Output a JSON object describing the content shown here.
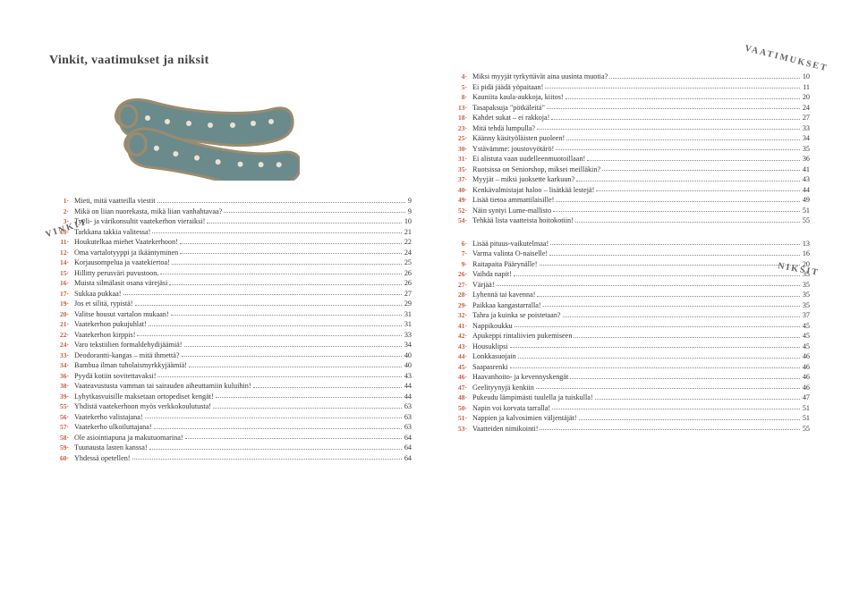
{
  "title": "Vinkit, vaatimukset ja niksit",
  "sideLabels": {
    "vinkit": "VINKIT",
    "vaatimukset": "VAATIMUKSET",
    "niksit": "NIKSIT"
  },
  "colors": {
    "accent": "#c95b3f",
    "sock_fill": "#6b8a8c",
    "sock_outline": "#9b8b6f",
    "sock_dots": "#ebe3d0"
  },
  "left": {
    "vinkit": [
      {
        "n": "1·",
        "label": "Mieti, mitä vaatteilla viestit",
        "p": "9"
      },
      {
        "n": "2·",
        "label": "Mikä on liian nuorekasta, mikä liian vanhahtavaa?",
        "p": "9"
      },
      {
        "n": "3·",
        "label": "Tyyli- ja värikonsultit vaatekerhon vieraiksi!",
        "p": "10"
      },
      {
        "n": "10·",
        "label": "Tarkkana takkia valitessa!",
        "p": "21"
      },
      {
        "n": "11·",
        "label": "Houkutelkaa miehet Vaatekerhoon!",
        "p": "22"
      },
      {
        "n": "12·",
        "label": "Oma vartalotyyppi ja ikääntyminen",
        "p": "24"
      },
      {
        "n": "14·",
        "label": "Korjausompelua ja vaatekiertoa!",
        "p": "25"
      },
      {
        "n": "15·",
        "label": "Hillitty perusväri puvustoon.",
        "p": "26"
      },
      {
        "n": "16·",
        "label": "Muista silmälasit osana värejäsi",
        "p": "26"
      },
      {
        "n": "17·",
        "label": "Sukkaa pukkaa!",
        "p": "27"
      },
      {
        "n": "19·",
        "label": "Jos et silitä, rypistä!",
        "p": "29"
      },
      {
        "n": "20·",
        "label": "Valitse housut vartalon mukaan!",
        "p": "31"
      },
      {
        "n": "21·",
        "label": "Vaatekerhon pukujuhlat!",
        "p": "31"
      },
      {
        "n": "22·",
        "label": "Vaatekerhon kirppis!",
        "p": "33"
      },
      {
        "n": "24·",
        "label": "Varo tekstiilien formaldehydijäämiä!",
        "p": "34"
      },
      {
        "n": "33·",
        "label": "Deodorantti-kangas – mitä ihmettä?",
        "p": "40"
      },
      {
        "n": "34·",
        "label": "Bambua ilman tuholaismyrkkyjäämiä!",
        "p": "40"
      },
      {
        "n": "36·",
        "label": "Pyydä kotiin sovitettavaksi!",
        "p": "43"
      },
      {
        "n": "38·",
        "label": "Vaateavustusta vamman tai sairauden aiheuttamiin kuluihin!",
        "p": "44"
      },
      {
        "n": "39·",
        "label": "Lyhytkasvuisille maksetaan ortopediset kengät!",
        "p": "44"
      },
      {
        "n": "55·",
        "label": "Yhdistä vaatekerhoon myös verkkokoulutusta!",
        "p": "63"
      },
      {
        "n": "56·",
        "label": "Vaatekerho valistajana!",
        "p": "63"
      },
      {
        "n": "57·",
        "label": "Vaatekerho ulkoiluttajana!",
        "p": "63"
      },
      {
        "n": "58·",
        "label": "Ole asiointiapuna ja makutuomarina!",
        "p": "64"
      },
      {
        "n": "59·",
        "label": "Tuunausta lasten kanssa!",
        "p": "64"
      },
      {
        "n": "60·",
        "label": "Yhdessä opetellen!",
        "p": "64"
      }
    ]
  },
  "right": {
    "vaatimukset": [
      {
        "n": "4·",
        "label": "Miksi myyjät tyrkyttävät aina uusinta muotia?",
        "p": "10"
      },
      {
        "n": "5·",
        "label": "Ei pidä jäädä yöpaitaan!",
        "p": "11"
      },
      {
        "n": "8·",
        "label": "Kauniita kaula-aukkoja, kiitos!",
        "p": "20"
      },
      {
        "n": "13·",
        "label": "Tasapaksuja \"pötkäleitä\"",
        "p": "24"
      },
      {
        "n": "18·",
        "label": "Kahdet sukat – ei rakkoja!",
        "p": "27"
      },
      {
        "n": "23·",
        "label": "Mitä tehdä lumpulla?",
        "p": "33"
      },
      {
        "n": "25·",
        "label": "Käänny käsityöläisten puoleen!",
        "p": "34"
      },
      {
        "n": "30·",
        "label": "Ystävämme: joustovyötärö!",
        "p": "35"
      },
      {
        "n": "31·",
        "label": "Ei alistuta vaan uudelleenmuotoillaan!",
        "p": "36"
      },
      {
        "n": "35·",
        "label": "Ruotsissa on Seniorshop, miksei meilläkin?",
        "p": "41"
      },
      {
        "n": "37·",
        "label": "Myyjät – miksi juoksette karkuun?",
        "p": "43"
      },
      {
        "n": "40·",
        "label": "Kenkävalmistajat haloo – lisätkää lestejä!",
        "p": "44"
      },
      {
        "n": "49·",
        "label": "Lisää tietoa ammattilaisille!",
        "p": "49"
      },
      {
        "n": "52·",
        "label": "Näin syntyi Lume-mallisto",
        "p": "51"
      },
      {
        "n": "54·",
        "label": "Tehkää lista vaatteista hoitokotiin!",
        "p": "55"
      }
    ],
    "niksit": [
      {
        "n": "6·",
        "label": "Lisää pituus-vaikutelmaa!",
        "p": "13"
      },
      {
        "n": "7·",
        "label": "Varma valinta O-naiselle!",
        "p": "16"
      },
      {
        "n": "9·",
        "label": "Raitapaita Päärynälle!",
        "p": "20"
      },
      {
        "n": "26·",
        "label": "Vaihda napit!",
        "p": "35"
      },
      {
        "n": "27·",
        "label": "Värjää!",
        "p": "35"
      },
      {
        "n": "28·",
        "label": "Lyhennä tai kavenna!",
        "p": "35"
      },
      {
        "n": "29·",
        "label": "Paikkaa kangastarralla!",
        "p": "35"
      },
      {
        "n": "32·",
        "label": "Tahra ja kuinka se poistetaan?",
        "p": "37"
      },
      {
        "n": "41·",
        "label": "Nappikoukku",
        "p": "45"
      },
      {
        "n": "42·",
        "label": "Apukeppi rintaliivien pukemiseen",
        "p": "45"
      },
      {
        "n": "43·",
        "label": "Housuklipsi",
        "p": "45"
      },
      {
        "n": "44·",
        "label": "Lonkkasuojain",
        "p": "46"
      },
      {
        "n": "45·",
        "label": "Saapasrenki",
        "p": "46"
      },
      {
        "n": "46·",
        "label": "Haavanhoito- ja kevennyskengät",
        "p": "46"
      },
      {
        "n": "47·",
        "label": "Geelityynyjä kenkiin",
        "p": "46"
      },
      {
        "n": "48·",
        "label": "Pukeudu lämpimästi tuulella ja tuiskulla!",
        "p": "47"
      },
      {
        "n": "50·",
        "label": "Napin voi korvata tarralla!",
        "p": "51"
      },
      {
        "n": "51·",
        "label": "Nappien ja kalvosimien väljentäjät!",
        "p": "51"
      },
      {
        "n": "53·",
        "label": "Vaatteiden nimikointi!",
        "p": "55"
      }
    ]
  }
}
